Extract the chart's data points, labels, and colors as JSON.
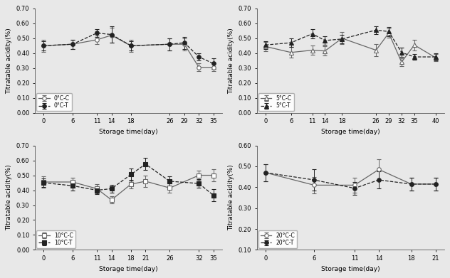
{
  "subplots": [
    {
      "temp_label": "0°C",
      "x_ctrl": [
        0,
        6,
        11,
        14,
        18,
        26,
        29,
        32,
        35
      ],
      "y_ctrl": [
        0.45,
        0.46,
        0.49,
        0.52,
        0.45,
        0.46,
        0.46,
        0.305,
        0.305
      ],
      "ye_ctrl": [
        0.04,
        0.03,
        0.03,
        0.05,
        0.04,
        0.04,
        0.04,
        0.025,
        0.025
      ],
      "x_trt": [
        0,
        6,
        11,
        14,
        18,
        26,
        29,
        32,
        35
      ],
      "y_trt": [
        0.45,
        0.46,
        0.535,
        0.525,
        0.45,
        0.46,
        0.47,
        0.375,
        0.33
      ],
      "ye_trt": [
        0.03,
        0.03,
        0.025,
        0.055,
        0.03,
        0.04,
        0.04,
        0.025,
        0.035
      ],
      "xticks": [
        0,
        6,
        11,
        14,
        18,
        26,
        29,
        32,
        35
      ],
      "ylim": [
        0.0,
        0.7
      ],
      "yticks": [
        0.0,
        0.1,
        0.2,
        0.3,
        0.4,
        0.5,
        0.6,
        0.7
      ],
      "marker_ctrl": "o",
      "marker_trt": "o",
      "linestyle_ctrl": "-",
      "linestyle_trt": "--",
      "legend_loc": "lower left"
    },
    {
      "temp_label": "5°C",
      "x_ctrl": [
        0,
        6,
        11,
        14,
        18,
        26,
        29,
        32,
        35,
        40
      ],
      "y_ctrl": [
        0.445,
        0.405,
        0.42,
        0.415,
        0.5,
        0.42,
        0.535,
        0.34,
        0.455,
        0.37
      ],
      "ye_ctrl": [
        0.03,
        0.035,
        0.03,
        0.03,
        0.04,
        0.04,
        0.03,
        0.025,
        0.035,
        0.025
      ],
      "x_trt": [
        0,
        6,
        11,
        14,
        18,
        26,
        29,
        32,
        35,
        40
      ],
      "y_trt": [
        0.455,
        0.47,
        0.53,
        0.485,
        0.495,
        0.555,
        0.545,
        0.405,
        0.375,
        0.375
      ],
      "ye_trt": [
        0.025,
        0.03,
        0.03,
        0.03,
        0.03,
        0.025,
        0.03,
        0.03,
        0.02,
        0.025
      ],
      "xticks": [
        0,
        6,
        11,
        14,
        18,
        26,
        29,
        32,
        35,
        40
      ],
      "ylim": [
        0.0,
        0.7
      ],
      "yticks": [
        0.0,
        0.1,
        0.2,
        0.3,
        0.4,
        0.5,
        0.6,
        0.7
      ],
      "marker_ctrl": "^",
      "marker_trt": "^",
      "linestyle_ctrl": "-",
      "linestyle_trt": "--",
      "legend_loc": "lower left"
    },
    {
      "temp_label": "10°C",
      "x_ctrl": [
        0,
        6,
        11,
        14,
        18,
        21,
        26,
        32,
        35
      ],
      "y_ctrl": [
        0.455,
        0.455,
        0.41,
        0.335,
        0.44,
        0.46,
        0.415,
        0.5,
        0.5
      ],
      "ye_ctrl": [
        0.04,
        0.03,
        0.03,
        0.025,
        0.03,
        0.04,
        0.03,
        0.03,
        0.04
      ],
      "x_trt": [
        0,
        6,
        11,
        14,
        18,
        21,
        26,
        32,
        35
      ],
      "y_trt": [
        0.45,
        0.43,
        0.4,
        0.41,
        0.505,
        0.575,
        0.46,
        0.445,
        0.365
      ],
      "ye_trt": [
        0.03,
        0.03,
        0.025,
        0.025,
        0.04,
        0.04,
        0.035,
        0.03,
        0.04
      ],
      "xticks": [
        0,
        6,
        11,
        14,
        18,
        21,
        26,
        32,
        35
      ],
      "ylim": [
        0.0,
        0.7
      ],
      "yticks": [
        0.0,
        0.1,
        0.2,
        0.3,
        0.4,
        0.5,
        0.6,
        0.7
      ],
      "marker_ctrl": "s",
      "marker_trt": "s",
      "linestyle_ctrl": "-",
      "linestyle_trt": "--",
      "legend_loc": "lower left"
    },
    {
      "temp_label": "20°C",
      "x_ctrl": [
        0,
        6,
        11,
        14,
        18,
        21
      ],
      "y_ctrl": [
        0.47,
        0.41,
        0.41,
        0.485,
        0.415,
        0.415
      ],
      "ye_ctrl": [
        0.04,
        0.04,
        0.035,
        0.05,
        0.03,
        0.03
      ],
      "x_trt": [
        0,
        6,
        11,
        14,
        18,
        21
      ],
      "y_trt": [
        0.47,
        0.435,
        0.395,
        0.435,
        0.415,
        0.415
      ],
      "ye_trt": [
        0.04,
        0.05,
        0.03,
        0.04,
        0.03,
        0.03
      ],
      "xticks": [
        0,
        6,
        11,
        14,
        18,
        21
      ],
      "ylim": [
        0.1,
        0.6
      ],
      "yticks": [
        0.1,
        0.2,
        0.3,
        0.4,
        0.5,
        0.6
      ],
      "marker_ctrl": "o",
      "marker_trt": "o",
      "linestyle_ctrl": "-",
      "linestyle_trt": "--",
      "legend_loc": "lower left"
    }
  ],
  "color_ctrl": "#666666",
  "color_trt": "#222222",
  "markersize": 4,
  "linewidth": 0.9,
  "capsize": 2,
  "elinewidth": 0.7,
  "ylabel": "Titratable acidity(%)",
  "xlabel": "Storage time(day)",
  "tick_fontsize": 6,
  "label_fontsize": 6.5,
  "legend_fontsize": 5.5,
  "bg_color": "#e8e8e8"
}
